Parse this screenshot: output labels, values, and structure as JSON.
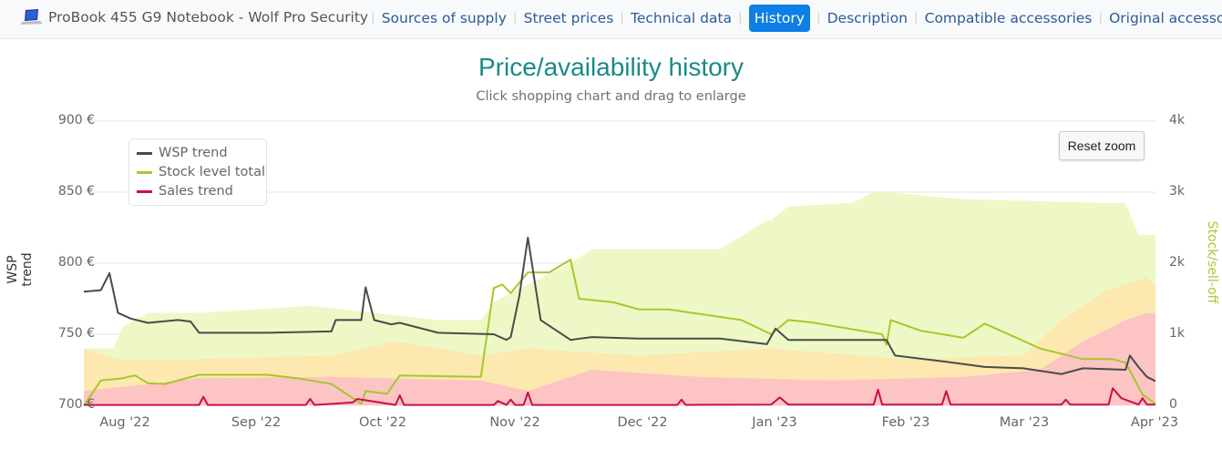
{
  "nav": {
    "product_title": "ProBook 455 G9 Notebook - Wolf Pro Security",
    "logo_icon": "laptop-icon",
    "links": [
      {
        "label": "Sources of supply",
        "active": false
      },
      {
        "label": "Street prices",
        "active": false
      },
      {
        "label": "Technical data",
        "active": false
      },
      {
        "label": "History",
        "active": true
      },
      {
        "label": "Description",
        "active": false
      },
      {
        "label": "Compatible accessories",
        "active": false
      },
      {
        "label": "Original accessories",
        "active": false
      }
    ]
  },
  "header": {
    "title": "Price/availability history",
    "subtitle": "Click shopping chart and drag to enlarge"
  },
  "controls": {
    "reset_zoom": "Reset zoom"
  },
  "colors": {
    "title": "#1a8a87",
    "wsp": "#4a4a4a",
    "stock": "#a6c82a",
    "sales": "#c8104a",
    "area_green": "#eef8c6",
    "area_yellow": "#fde8b0",
    "area_red": "#fdc4c4",
    "nav_active": "#0d7fe6"
  },
  "chart_data": {
    "type": "line",
    "title": "Price/availability history",
    "subtitle": "Click shopping chart and drag to enlarge",
    "xlabel": "",
    "ylabel": "WSP trend",
    "ylabel_right": "Stock/sell-off",
    "ylim": [
      700,
      900
    ],
    "ylim_right": [
      0,
      4000
    ],
    "yticks": [
      "900 €",
      "850 €",
      "800 €",
      "750 €",
      "700 €"
    ],
    "yticks_right": [
      "4k",
      "3k",
      "2k",
      "1k",
      "0"
    ],
    "xticks": [
      "Aug '22",
      "Sep '22",
      "Oct '22",
      "Nov '22",
      "Dec '22",
      "Jan '23",
      "Feb '23",
      "Mar '23",
      "Apr '23"
    ],
    "legend": [
      "WSP trend",
      "Stock level total",
      "Sales trend"
    ],
    "legend_position": "top-left inside",
    "grid": true,
    "x_range": [
      "2022-07-24",
      "2023-04-01"
    ],
    "series": [
      {
        "name": "WSP trend",
        "axis": "left",
        "unit": "€",
        "x": [
          "2022-07-24",
          "2022-07-28",
          "2022-07-30",
          "2022-08-01",
          "2022-08-04",
          "2022-08-08",
          "2022-08-15",
          "2022-08-18",
          "2022-08-20",
          "2022-09-05",
          "2022-09-20",
          "2022-09-21",
          "2022-09-27",
          "2022-09-28",
          "2022-09-30",
          "2022-10-04",
          "2022-10-06",
          "2022-10-15",
          "2022-10-28",
          "2022-10-31",
          "2022-11-01",
          "2022-11-03",
          "2022-11-05",
          "2022-11-08",
          "2022-11-15",
          "2022-11-20",
          "2022-12-01",
          "2022-12-20",
          "2022-12-31",
          "2023-01-02",
          "2023-01-05",
          "2023-01-25",
          "2023-01-28",
          "2023-01-30",
          "2023-02-10",
          "2023-02-20",
          "2023-03-01",
          "2023-03-10",
          "2023-03-15",
          "2023-03-25",
          "2023-03-26",
          "2023-03-28",
          "2023-03-30",
          "2023-04-01"
        ],
        "values": [
          780,
          781,
          793,
          765,
          761,
          758,
          760,
          759,
          751,
          751,
          752,
          760,
          760,
          783,
          760,
          757,
          758,
          751,
          750,
          746,
          748,
          777,
          818,
          760,
          746,
          748,
          747,
          747,
          743,
          754,
          746,
          746,
          746,
          735,
          731,
          727,
          726,
          722,
          726,
          725,
          735,
          727,
          720,
          717
        ]
      },
      {
        "name": "Stock level total",
        "axis": "right",
        "unit": "units",
        "x": [
          "2022-07-24",
          "2022-07-26",
          "2022-07-28",
          "2022-08-02",
          "2022-08-05",
          "2022-08-08",
          "2022-08-12",
          "2022-08-20",
          "2022-09-05",
          "2022-09-12",
          "2022-09-20",
          "2022-09-27",
          "2022-09-28",
          "2022-10-03",
          "2022-10-06",
          "2022-10-25",
          "2022-10-28",
          "2022-10-30",
          "2022-11-01",
          "2022-11-05",
          "2022-11-10",
          "2022-11-15",
          "2022-11-17",
          "2022-11-25",
          "2022-12-01",
          "2022-12-08",
          "2022-12-25",
          "2023-01-01",
          "2023-01-05",
          "2023-01-10",
          "2023-01-27",
          "2023-01-28",
          "2023-01-29",
          "2023-02-05",
          "2023-02-15",
          "2023-02-20",
          "2023-03-05",
          "2023-03-15",
          "2023-03-22",
          "2023-03-25",
          "2023-03-29",
          "2023-04-01"
        ],
        "values": [
          0,
          170,
          350,
          380,
          420,
          310,
          300,
          430,
          430,
          380,
          300,
          20,
          200,
          160,
          420,
          400,
          1650,
          1700,
          1580,
          1870,
          1870,
          2050,
          1500,
          1450,
          1350,
          1350,
          1200,
          1000,
          1200,
          1170,
          1000,
          850,
          1200,
          1050,
          950,
          1150,
          800,
          650,
          650,
          600,
          150,
          20
        ]
      },
      {
        "name": "Sales trend",
        "axis": "right",
        "unit": "units",
        "x": [
          "2022-07-24",
          "2022-08-20",
          "2022-08-21",
          "2022-08-22",
          "2022-09-14",
          "2022-09-15",
          "2022-09-16",
          "2022-09-25",
          "2022-09-26",
          "2022-10-05",
          "2022-10-06",
          "2022-10-07",
          "2022-10-28",
          "2022-10-29",
          "2022-10-31",
          "2022-11-01",
          "2022-11-02",
          "2022-11-04",
          "2022-11-05",
          "2022-11-06",
          "2022-12-10",
          "2022-12-11",
          "2022-12-12",
          "2023-01-01",
          "2023-01-03",
          "2023-01-05",
          "2023-01-25",
          "2023-01-26",
          "2023-01-27",
          "2023-02-10",
          "2023-02-11",
          "2023-02-12",
          "2023-03-10",
          "2023-03-11",
          "2023-03-12",
          "2023-03-21",
          "2023-03-22",
          "2023-03-24",
          "2023-03-28",
          "2023-03-29",
          "2023-03-30",
          "2023-04-01"
        ],
        "values": [
          5,
          5,
          120,
          5,
          5,
          90,
          5,
          40,
          90,
          5,
          140,
          5,
          5,
          60,
          5,
          80,
          5,
          5,
          180,
          5,
          5,
          80,
          5,
          10,
          110,
          10,
          10,
          220,
          10,
          10,
          200,
          10,
          10,
          80,
          10,
          10,
          240,
          100,
          10,
          100,
          10,
          10
        ]
      },
      {
        "name": "Stock band (green area)",
        "axis": "right",
        "x": [
          "2022-07-24",
          "2022-07-31",
          "2022-08-02",
          "2022-08-08",
          "2022-08-20",
          "2022-09-15",
          "2022-10-15",
          "2022-10-25",
          "2022-10-28",
          "2022-11-05",
          "2022-11-15",
          "2022-11-20",
          "2022-12-20",
          "2022-12-31",
          "2023-01-01",
          "2023-01-05",
          "2023-01-20",
          "2023-01-25",
          "2023-01-28",
          "2023-02-15",
          "2023-03-20",
          "2023-03-25",
          "2023-03-28",
          "2023-04-01"
        ],
        "values": [
          800,
          800,
          1100,
          1300,
          1300,
          1400,
          1200,
          1200,
          1450,
          1700,
          2000,
          2200,
          2200,
          2600,
          2600,
          2800,
          2850,
          3000,
          3000,
          2900,
          2850,
          2850,
          2400,
          2400
        ]
      },
      {
        "name": "Sell-off band (yellow area)",
        "axis": "right",
        "x": [
          "2022-07-24",
          "2022-08-01",
          "2022-08-20",
          "2022-09-20",
          "2022-10-05",
          "2022-10-25",
          "2022-11-05",
          "2022-12-01",
          "2023-01-01",
          "2023-02-01",
          "2023-03-01",
          "2023-03-10",
          "2023-03-20",
          "2023-03-30",
          "2023-04-01"
        ],
        "values": [
          800,
          650,
          650,
          700,
          900,
          700,
          800,
          700,
          800,
          650,
          700,
          1200,
          1600,
          1800,
          1700
        ]
      },
      {
        "name": "Sell-off band (red area)",
        "axis": "right",
        "x": [
          "2022-07-24",
          "2022-08-20",
          "2022-09-20",
          "2022-10-25",
          "2022-11-05",
          "2022-11-20",
          "2022-12-15",
          "2023-01-15",
          "2023-02-15",
          "2023-03-05",
          "2023-03-15",
          "2023-03-25",
          "2023-03-30",
          "2023-04-01"
        ],
        "values": [
          200,
          380,
          400,
          350,
          200,
          500,
          400,
          350,
          400,
          500,
          900,
          1200,
          1300,
          1300
        ]
      }
    ]
  }
}
